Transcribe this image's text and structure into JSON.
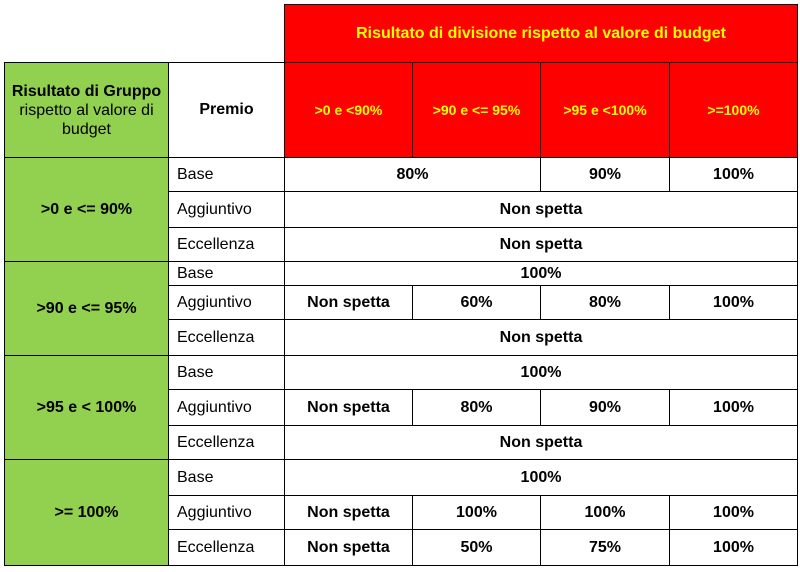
{
  "header": {
    "division_title": "Risultato di divisione rispetto al valore di budget",
    "group_title_bold": "Risultato di Gruppo",
    "group_title_rest": "rispetto al valore di budget",
    "premio": "Premio",
    "ranges": [
      ">0 e <90%",
      ">90 e <= 95%",
      ">95 e <100%",
      ">=100%"
    ]
  },
  "groups": [
    {
      "label": ">0 e <= 90%",
      "base": "Base",
      "base_a": "80%",
      "base_b": "90%",
      "base_c": "100%",
      "agg": "Aggiuntivo",
      "agg_val": "Non spetta",
      "ecc": "Eccellenza",
      "ecc_val": "Non spetta"
    },
    {
      "label": ">90 e <= 95%",
      "base": "Base",
      "base_val": "100%",
      "agg": "Aggiuntivo",
      "agg_vals": [
        "Non spetta",
        "60%",
        "80%",
        "100%"
      ],
      "ecc": "Eccellenza",
      "ecc_val": "Non spetta"
    },
    {
      "label": ">95 e < 100%",
      "base": "Base",
      "base_val": "100%",
      "agg": "Aggiuntivo",
      "agg_vals": [
        "Non spetta",
        "80%",
        "90%",
        "100%"
      ],
      "ecc": "Eccellenza",
      "ecc_val": "Non spetta"
    },
    {
      "label": ">= 100%",
      "base": "Base",
      "base_val": "100%",
      "agg": "Aggiuntivo",
      "agg_vals": [
        "Non spetta",
        "100%",
        "100%",
        "100%"
      ],
      "ecc": "Eccellenza",
      "ecc_vals": [
        "Non spetta",
        "50%",
        "75%",
        "100%"
      ]
    }
  ],
  "colors": {
    "red": "#ff0000",
    "yellow": "#ffff00",
    "green": "#92d050"
  }
}
